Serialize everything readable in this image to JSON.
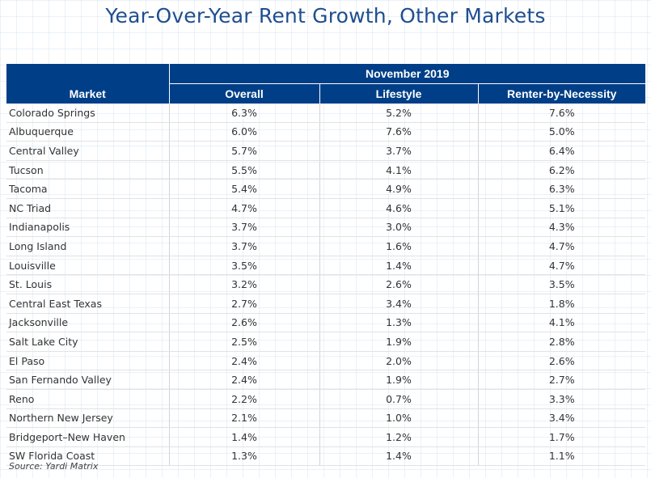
{
  "title": "Year-Over-Year Rent Growth, Other Markets",
  "source": "Source: Yardi Matrix",
  "chart_data": {
    "type": "table",
    "group_header": "November 2019",
    "columns": [
      "Market",
      "Overall",
      "Lifestyle",
      "Renter-by-Necessity"
    ],
    "rows": [
      [
        "Colorado Springs",
        "6.3%",
        "5.2%",
        "7.6%"
      ],
      [
        "Albuquerque",
        "6.0%",
        "7.6%",
        "5.0%"
      ],
      [
        "Central Valley",
        "5.7%",
        "3.7%",
        "6.4%"
      ],
      [
        "Tucson",
        "5.5%",
        "4.1%",
        "6.2%"
      ],
      [
        "Tacoma",
        "5.4%",
        "4.9%",
        "6.3%"
      ],
      [
        "NC Triad",
        "4.7%",
        "4.6%",
        "5.1%"
      ],
      [
        "Indianapolis",
        "3.7%",
        "3.0%",
        "4.3%"
      ],
      [
        "Long Island",
        "3.7%",
        "1.6%",
        "4.7%"
      ],
      [
        "Louisville",
        "3.5%",
        "1.4%",
        "4.7%"
      ],
      [
        "St. Louis",
        "3.2%",
        "2.6%",
        "3.5%"
      ],
      [
        "Central East Texas",
        "2.7%",
        "3.4%",
        "1.8%"
      ],
      [
        "Jacksonville",
        "2.6%",
        "1.3%",
        "4.1%"
      ],
      [
        "Salt Lake City",
        "2.5%",
        "1.9%",
        "2.8%"
      ],
      [
        "El Paso",
        "2.4%",
        "2.0%",
        "2.6%"
      ],
      [
        "San Fernando Valley",
        "2.4%",
        "1.9%",
        "2.7%"
      ],
      [
        "Reno",
        "2.2%",
        "0.7%",
        "3.3%"
      ],
      [
        "Northern New Jersey",
        "2.1%",
        "1.0%",
        "3.4%"
      ],
      [
        "Bridgeport–New Haven",
        "1.4%",
        "1.2%",
        "1.7%"
      ],
      [
        "SW Florida Coast",
        "1.3%",
        "1.4%",
        "1.1%"
      ]
    ]
  }
}
